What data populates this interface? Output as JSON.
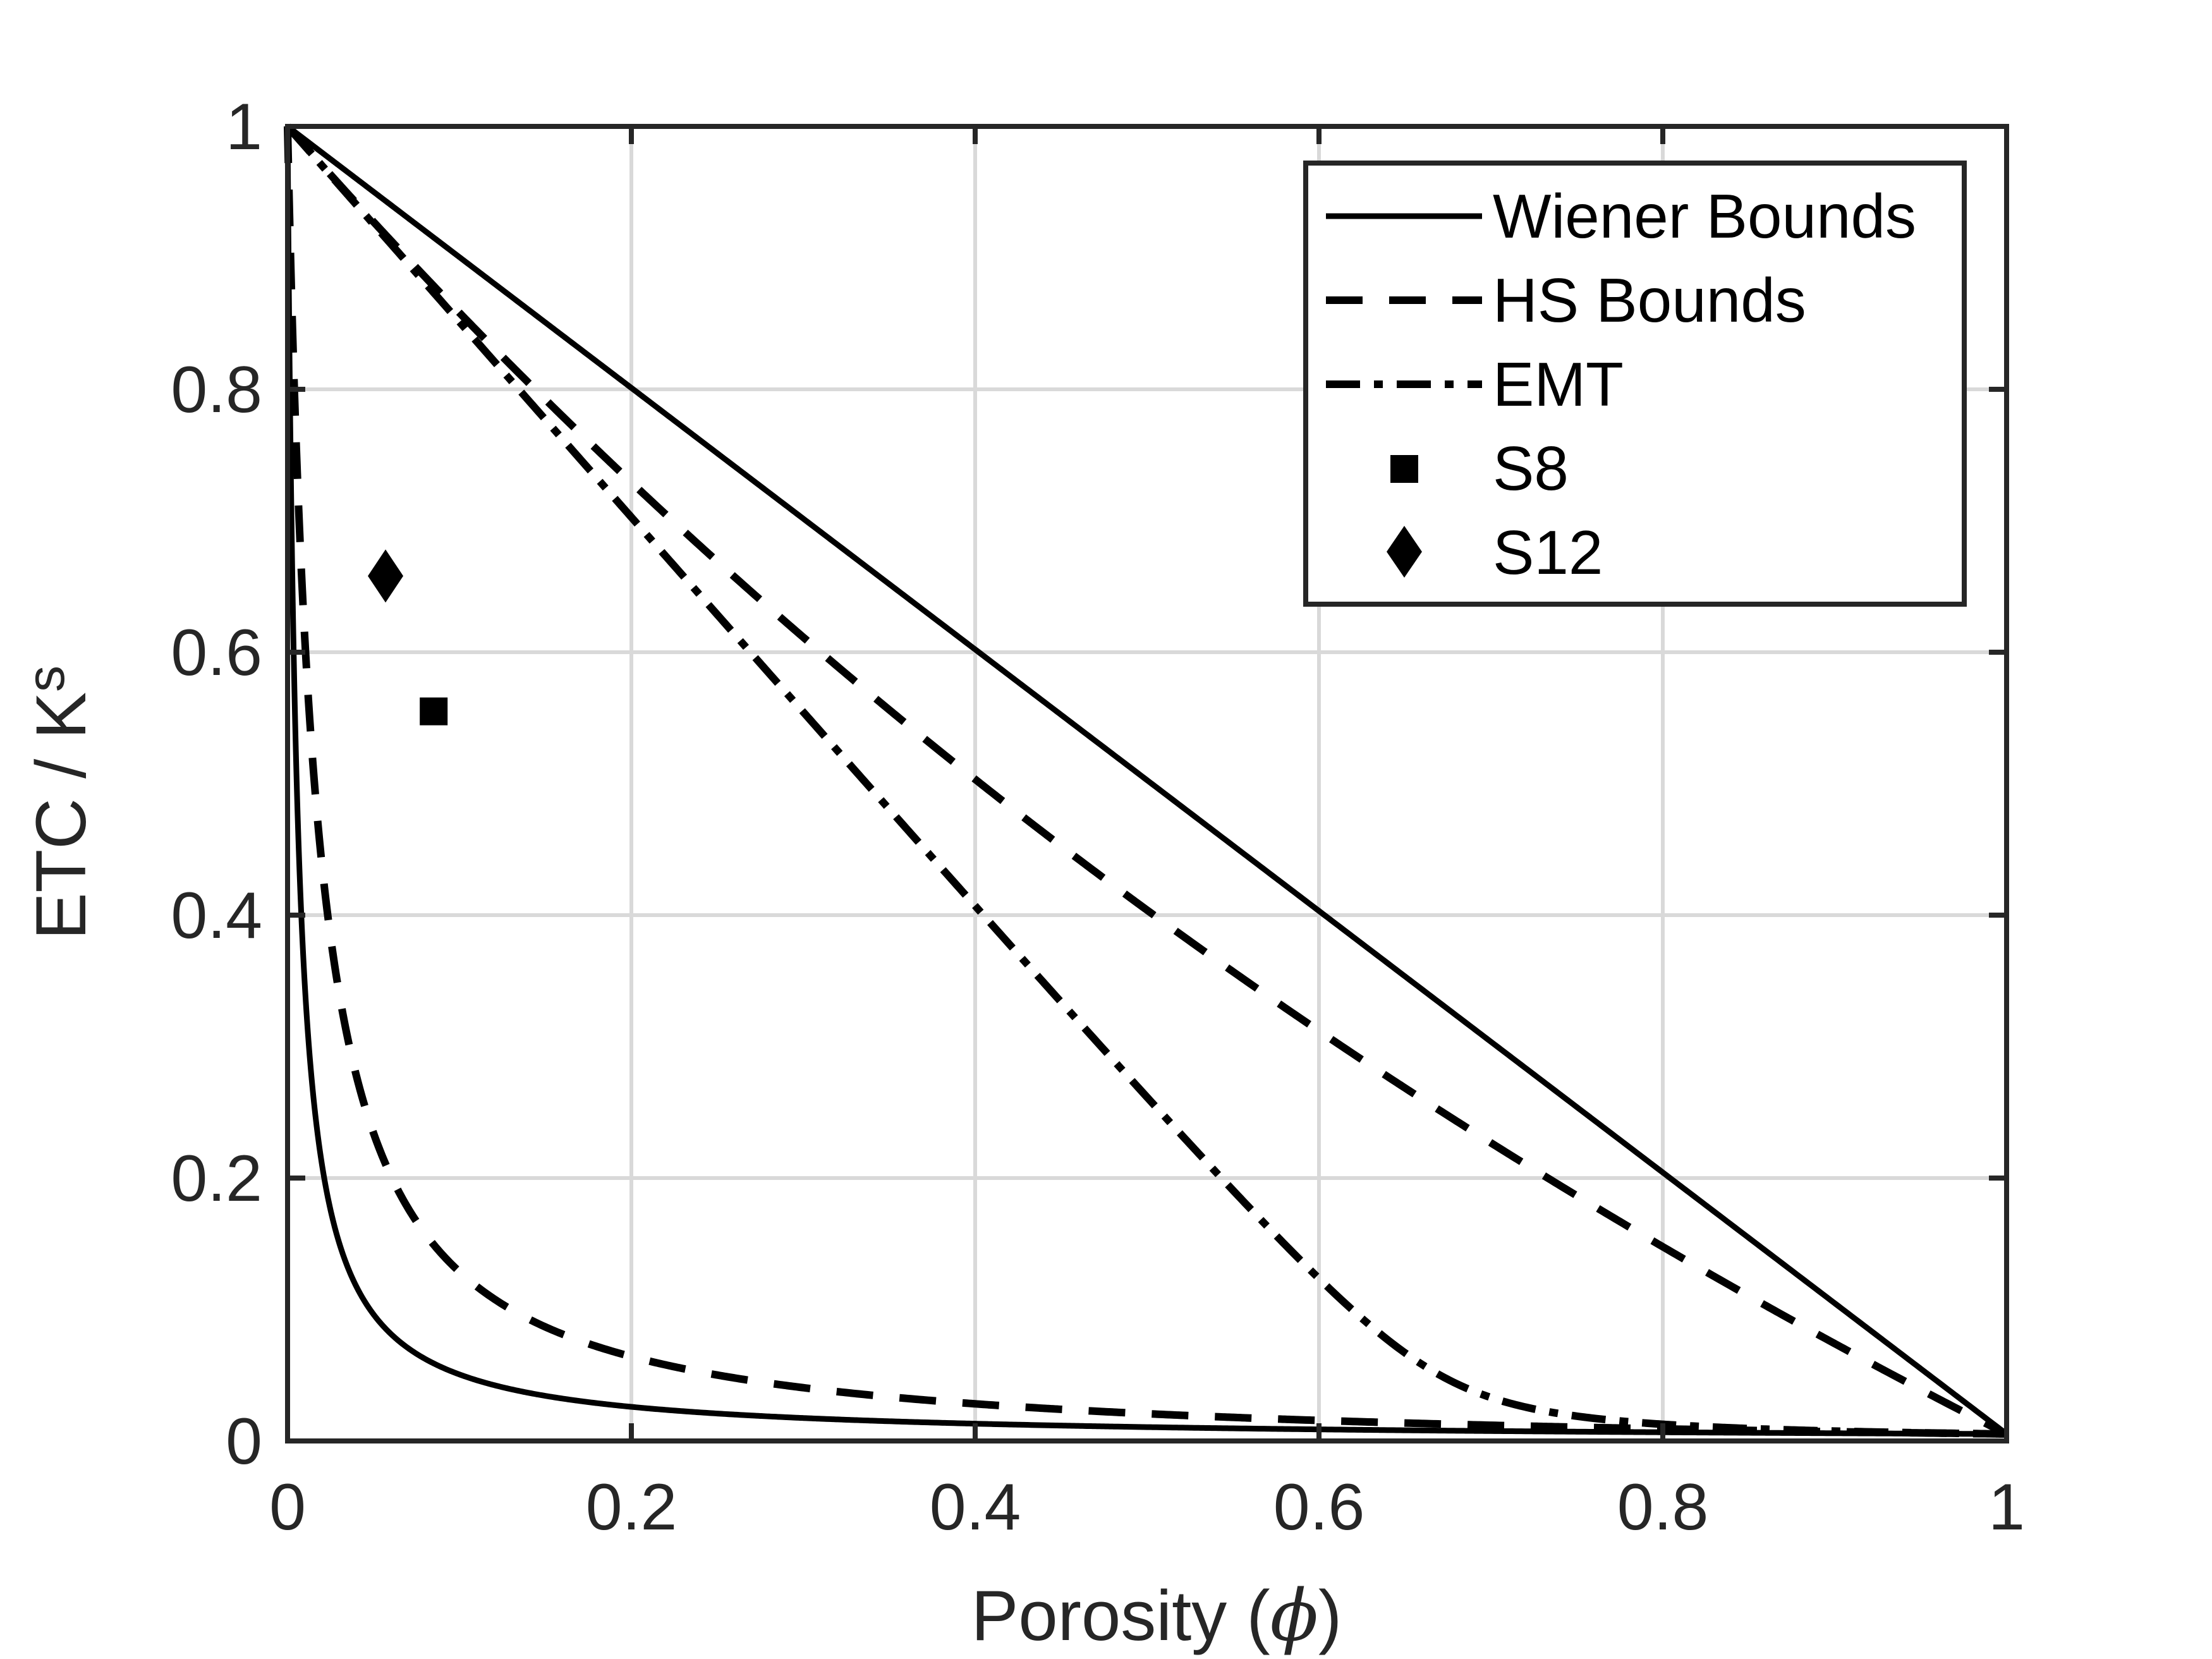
{
  "chart_data": {
    "type": "line",
    "title": "",
    "xlabel": {
      "prefix": "Porosity (",
      "symbol": "ϕ",
      "suffix": ")"
    },
    "ylabel": {
      "main": "ETC / K",
      "subscript": "s"
    },
    "xlim": [
      0,
      1
    ],
    "ylim": [
      0,
      1
    ],
    "xticks": [
      0,
      0.2,
      0.4,
      0.6,
      0.8,
      1
    ],
    "xtick_labels": [
      "0",
      "0.2",
      "0.4",
      "0.6",
      "0.8",
      "1"
    ],
    "yticks": [
      0,
      0.2,
      0.4,
      0.6,
      0.8,
      1
    ],
    "ytick_labels": [
      "0",
      "0.2",
      "0.4",
      "0.6",
      "0.8",
      "1"
    ],
    "grid": true,
    "legend_position": "top-right",
    "ks": 1.0,
    "kf": 0.0053,
    "series": [
      {
        "name": "Wiener Bounds",
        "style": "solid",
        "model": "wiener",
        "color": "#000000"
      },
      {
        "name": "HS Bounds",
        "style": "dashed",
        "model": "hashin-shtrikman",
        "color": "#000000"
      },
      {
        "name": "EMT",
        "style": "dashdot",
        "model": "emt",
        "color": "#000000"
      },
      {
        "name": "S8",
        "style": "marker-square",
        "points": [
          [
            0.085,
            0.555
          ]
        ],
        "color": "#000000"
      },
      {
        "name": "S12",
        "style": "marker-diamond",
        "points": [
          [
            0.057,
            0.658
          ]
        ],
        "color": "#000000"
      }
    ],
    "colors": {
      "axis": "#262626",
      "grid": "#d9d9d9",
      "line": "#000000"
    }
  }
}
